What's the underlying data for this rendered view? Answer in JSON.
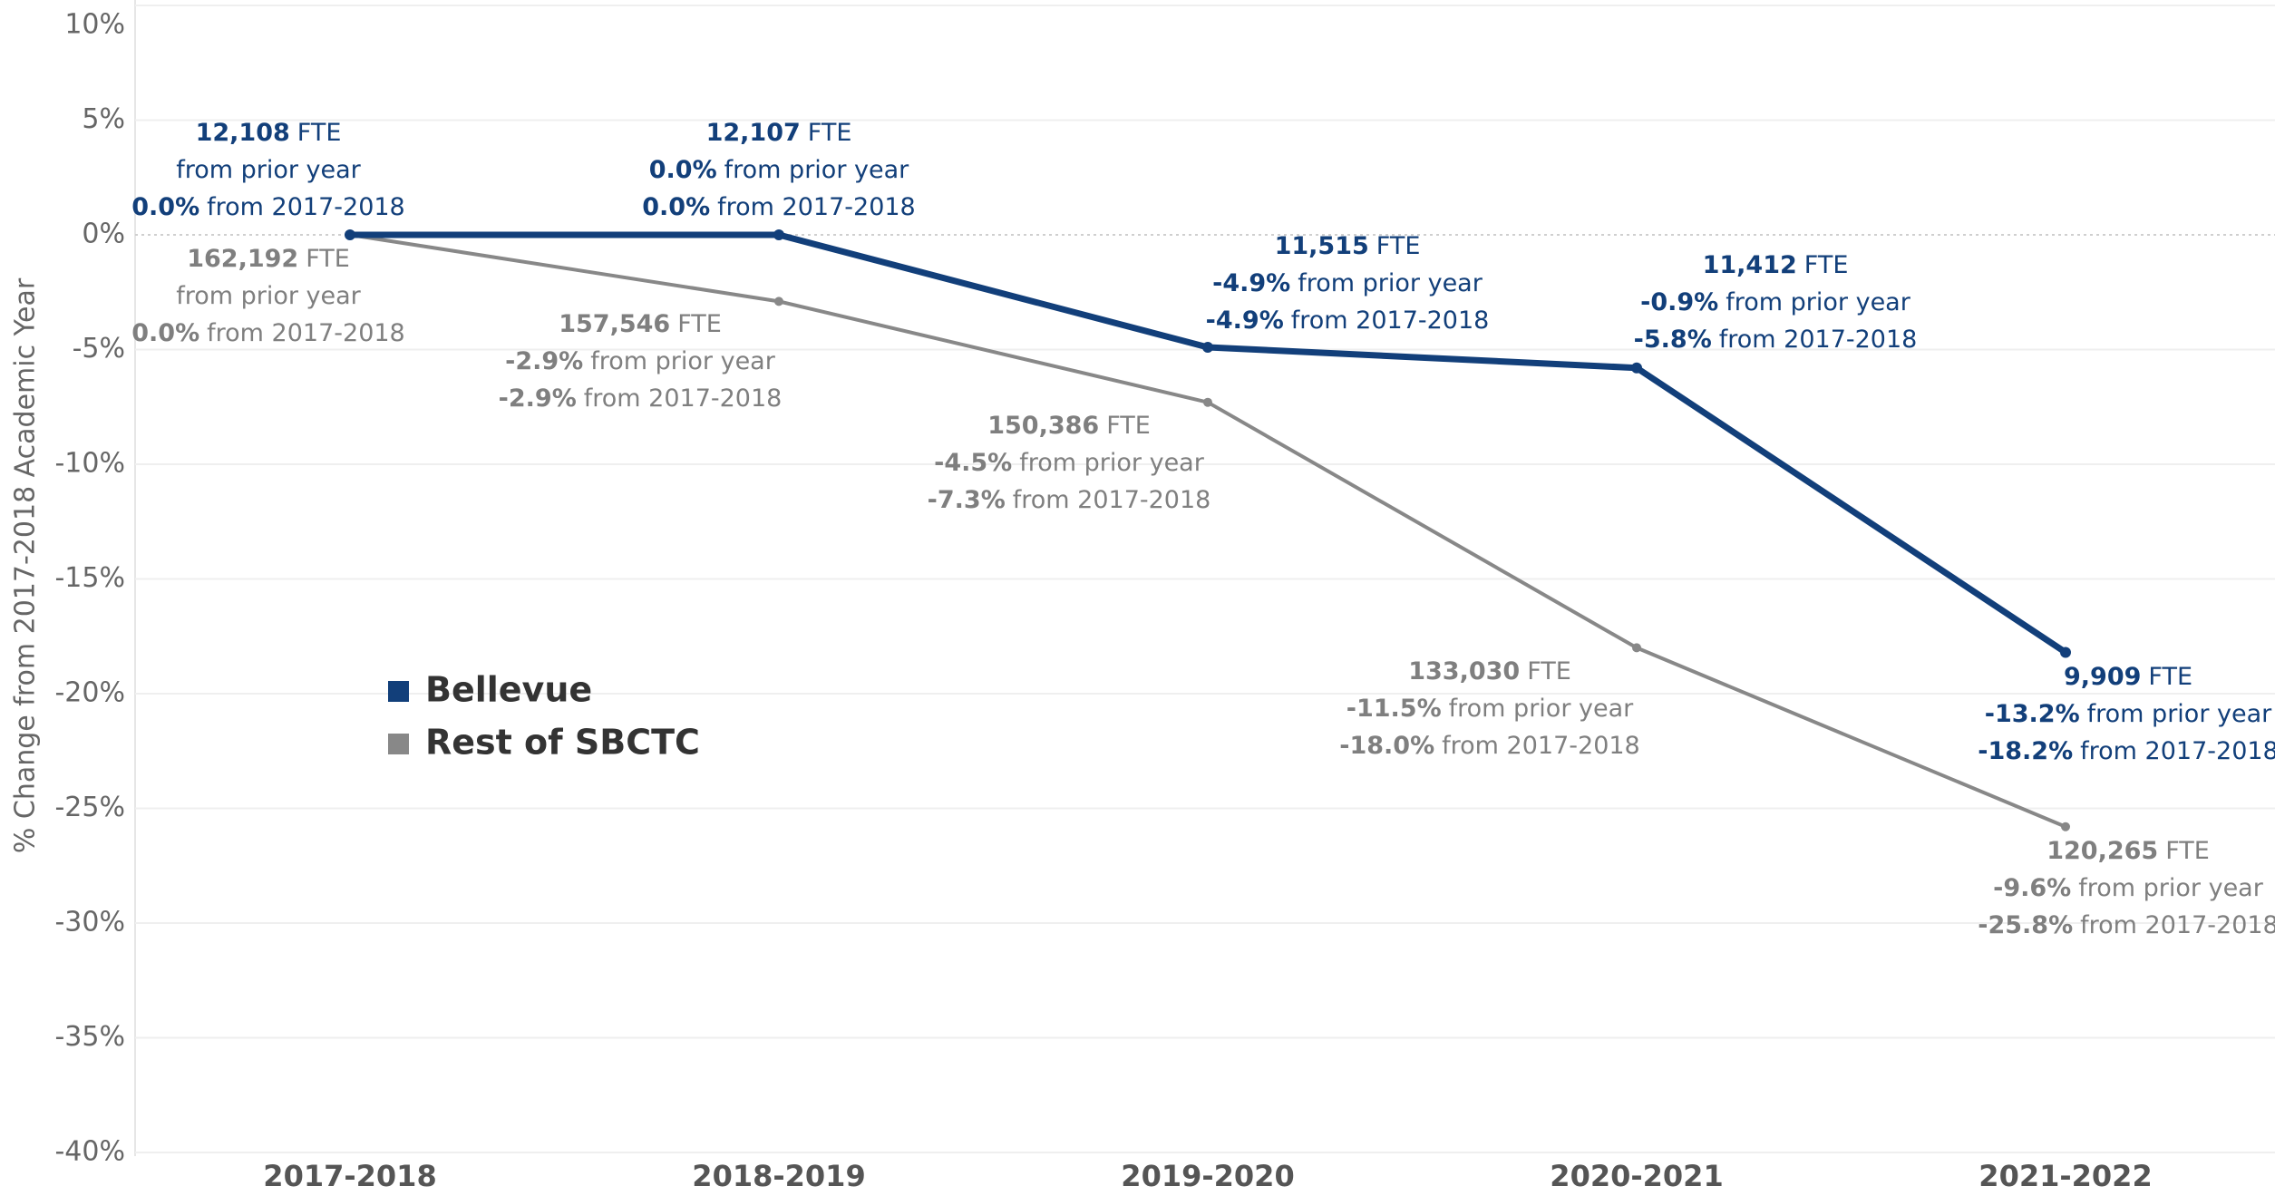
{
  "chart_data": {
    "type": "line",
    "y_label": "% Change from 2017-2018 Academic Year",
    "categories": [
      "2017-2018",
      "2018-2019",
      "2019-2020",
      "2020-2021",
      "2021-2022"
    ],
    "ylim": [
      -40,
      10
    ],
    "yticks": [
      {
        "value": 10,
        "label": "10%"
      },
      {
        "value": 5,
        "label": "5%"
      },
      {
        "value": 0,
        "label": "0%"
      },
      {
        "value": -5,
        "label": "-5%"
      },
      {
        "value": -10,
        "label": "-10%"
      },
      {
        "value": -15,
        "label": "-15%"
      },
      {
        "value": -20,
        "label": "-20%"
      },
      {
        "value": -25,
        "label": "-25%"
      },
      {
        "value": -30,
        "label": "-30%"
      },
      {
        "value": -35,
        "label": "-35%"
      },
      {
        "value": -40,
        "label": "-40%"
      }
    ],
    "grid": true,
    "fte_unit": "FTE",
    "prior_text": "from prior year",
    "base_text": "from 2017-2018",
    "series": [
      {
        "name": "Bellevue",
        "color": "#123f7a",
        "values": [
          0.0,
          0.0,
          -4.9,
          -5.8,
          -18.2
        ],
        "value_labels": [
          "0.0%",
          "0.0%",
          "-4.9%",
          "-5.8%",
          "-18.2%"
        ],
        "fte_labels": [
          "12,108",
          "12,107",
          "11,515",
          "11,412",
          "9,909"
        ],
        "prior_labels": [
          null,
          "0.0%",
          "-4.9%",
          "-0.9%",
          "-13.2%"
        ]
      },
      {
        "name": "Rest of SBCTC",
        "color": "#888888",
        "values": [
          0.0,
          -2.9,
          -7.3,
          -18.0,
          -25.8
        ],
        "value_labels": [
          "0.0%",
          "-2.9%",
          "-7.3%",
          "-18.0%",
          "-25.8%"
        ],
        "fte_labels": [
          "162,192",
          "157,546",
          "150,386",
          "133,030",
          "120,265"
        ],
        "prior_labels": [
          null,
          "-2.9%",
          "-4.5%",
          "-11.5%",
          "-9.6%"
        ]
      }
    ]
  }
}
